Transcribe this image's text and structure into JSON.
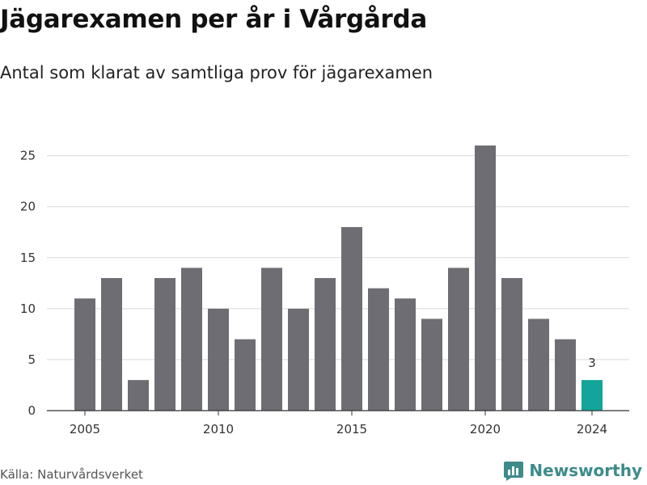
{
  "title": "Jägarexamen per år i Vårgårda",
  "subtitle": "Antal som klarat av samtliga prov för jägarexamen",
  "source": "Källa: Naturvårdsverket",
  "brand": {
    "name": "Newsworthy",
    "icon": "newsworthy-logo-icon",
    "color": "#3d8b8b"
  },
  "colors": {
    "bar": "#6e6d73",
    "highlight": "#12a59a",
    "grid": "#d9d9d9",
    "axis": "#333333"
  },
  "chart_data": {
    "type": "bar",
    "title": "Jägarexamen per år i Vårgårda",
    "subtitle": "Antal som klarat av samtliga prov för jägarexamen",
    "x": [
      2005,
      2006,
      2007,
      2008,
      2009,
      2010,
      2011,
      2012,
      2013,
      2014,
      2015,
      2016,
      2017,
      2018,
      2019,
      2020,
      2021,
      2022,
      2023,
      2024
    ],
    "values": [
      11,
      13,
      3,
      13,
      14,
      10,
      7,
      14,
      10,
      13,
      18,
      12,
      11,
      9,
      14,
      26,
      13,
      9,
      7,
      3
    ],
    "x_ticks": [
      "2005",
      "2010",
      "2015",
      "2020",
      "2024"
    ],
    "y_ticks": [
      0,
      5,
      10,
      15,
      20,
      25
    ],
    "ylim": [
      0,
      26
    ],
    "grid": true,
    "highlight": {
      "x": 2024,
      "label": "3"
    },
    "xlabel": "",
    "ylabel": ""
  }
}
